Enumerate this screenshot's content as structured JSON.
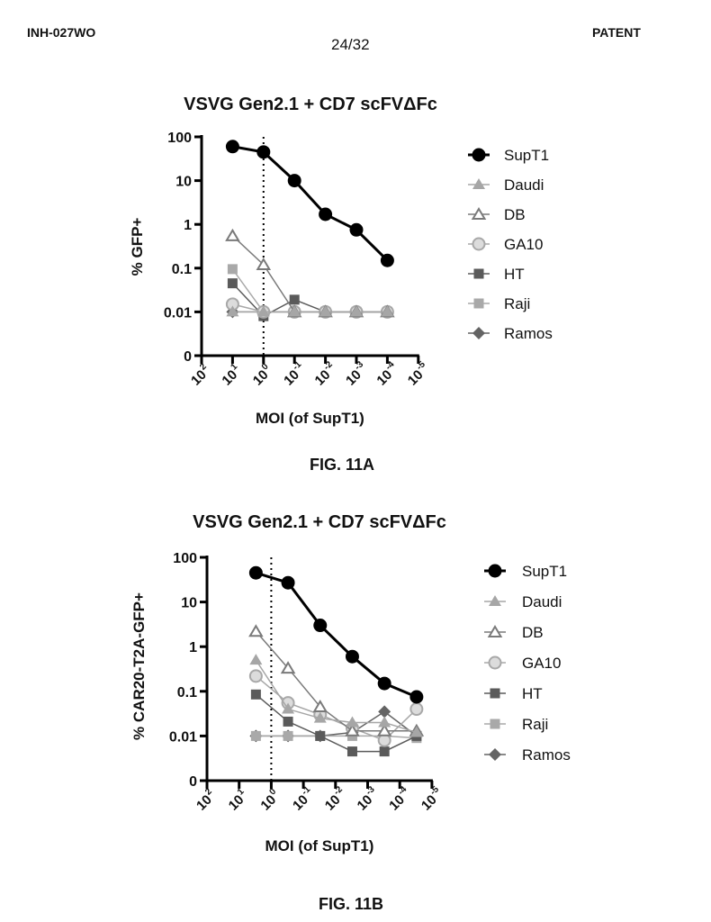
{
  "header": {
    "doc_id": "INH-027WO",
    "page": "24/32",
    "label": "PATENT"
  },
  "chart_data": [
    {
      "type": "line",
      "title": "VSVG Gen2.1 + CD7 scFVΔFc",
      "figure_label": "FIG. 11A",
      "xlabel": "MOI (of SupT1)",
      "ylabel": "% GFP+",
      "xscale": "log",
      "xlim": [
        100,
        1e-05
      ],
      "x_reversed": true,
      "x_tick_base": "10",
      "x_tick_exponents": [
        "2",
        "1",
        "0",
        "-1",
        "-2",
        "-3",
        "-4",
        "-5"
      ],
      "yscale": "log",
      "ylim": [
        0.001,
        100
      ],
      "y_tick_labels": [
        "100",
        "10",
        "1",
        "0.1",
        "0.01",
        "0"
      ],
      "y_tick_values": [
        100,
        10,
        1,
        0.1,
        0.01,
        0.001
      ],
      "reference_line_x": 1,
      "legend_position": "right",
      "x": [
        10,
        1,
        0.1,
        0.01,
        0.001,
        0.0001
      ],
      "series": [
        {
          "name": "SupT1",
          "values": [
            60,
            45,
            10,
            1.7,
            0.75,
            0.15
          ]
        },
        {
          "name": "Daudi",
          "values": [
            0.01,
            0.01,
            0.01,
            0.01,
            0.01,
            0.01
          ]
        },
        {
          "name": "DB",
          "values": [
            0.55,
            0.12,
            0.01,
            0.01,
            0.01,
            0.01
          ]
        },
        {
          "name": "GA10",
          "values": [
            0.015,
            0.01,
            0.01,
            0.01,
            0.01,
            0.01
          ]
        },
        {
          "name": "HT",
          "values": [
            0.045,
            0.008,
            0.019,
            0.01,
            0.01,
            0.01
          ]
        },
        {
          "name": "Raji",
          "values": [
            0.095,
            0.01,
            0.01,
            0.01,
            0.01,
            0.01
          ]
        },
        {
          "name": "Ramos",
          "values": [
            0.01,
            0.01,
            0.01,
            0.01,
            0.01,
            0.01
          ]
        }
      ]
    },
    {
      "type": "line",
      "title": "VSVG Gen2.1 + CD7 scFVΔFc",
      "figure_label": "FIG. 11B",
      "xlabel": "MOI (of SupT1)",
      "ylabel": "% CAR20-T2A-GFP+",
      "xscale": "log",
      "xlim": [
        100,
        1e-05
      ],
      "x_reversed": true,
      "x_tick_base": "10",
      "x_tick_exponents": [
        "2",
        "1",
        "0",
        "-1",
        "-2",
        "-3",
        "-4",
        "-5"
      ],
      "yscale": "log",
      "ylim": [
        0.001,
        100
      ],
      "y_tick_labels": [
        "100",
        "10",
        "1",
        "0.1",
        "0.01",
        "0"
      ],
      "y_tick_values": [
        100,
        10,
        1,
        0.1,
        0.01,
        0.001
      ],
      "reference_line_x": 1,
      "legend_position": "right",
      "x": [
        3,
        0.3,
        0.03,
        0.003,
        0.0003,
        3e-05
      ],
      "series": [
        {
          "name": "SupT1",
          "values": [
            45,
            27,
            3,
            0.6,
            0.15,
            0.075
          ]
        },
        {
          "name": "Daudi",
          "values": [
            0.5,
            0.04,
            0.025,
            0.02,
            0.02,
            0.012
          ]
        },
        {
          "name": "DB",
          "values": [
            2.2,
            0.33,
            0.045,
            0.013,
            0.013,
            0.013
          ]
        },
        {
          "name": "GA10",
          "values": [
            0.22,
            0.055,
            0.03,
            0.015,
            0.008,
            0.04
          ]
        },
        {
          "name": "HT",
          "values": [
            0.085,
            0.021,
            0.01,
            0.0045,
            0.0045,
            0.01
          ]
        },
        {
          "name": "Raji",
          "values": [
            0.01,
            0.01,
            0.01,
            0.01,
            0.01,
            0.009
          ]
        },
        {
          "name": "Ramos",
          "values": [
            0.01,
            0.01,
            0.01,
            0.012,
            0.035,
            0.01
          ]
        }
      ]
    }
  ],
  "series_styles": {
    "SupT1": {
      "marker": "circle",
      "fill": "#000000",
      "stroke": "#000000",
      "line": "#000000"
    },
    "Daudi": {
      "marker": "triangle",
      "fill": "#a6a6a6",
      "stroke": "#a6a6a6",
      "line": "#a6a6a6"
    },
    "DB": {
      "marker": "triangle-open",
      "fill": "#ffffff",
      "stroke": "#7a7a7a",
      "line": "#7a7a7a"
    },
    "GA10": {
      "marker": "circle",
      "fill": "#dcdcdc",
      "stroke": "#a8a8a8",
      "line": "#a8a8a8"
    },
    "HT": {
      "marker": "square",
      "fill": "#5a5a5a",
      "stroke": "#5a5a5a",
      "line": "#5a5a5a"
    },
    "Raji": {
      "marker": "square",
      "fill": "#a9a9a9",
      "stroke": "#a9a9a9",
      "line": "#a9a9a9"
    },
    "Ramos": {
      "marker": "diamond",
      "fill": "#646464",
      "stroke": "#646464",
      "line": "#646464"
    }
  }
}
